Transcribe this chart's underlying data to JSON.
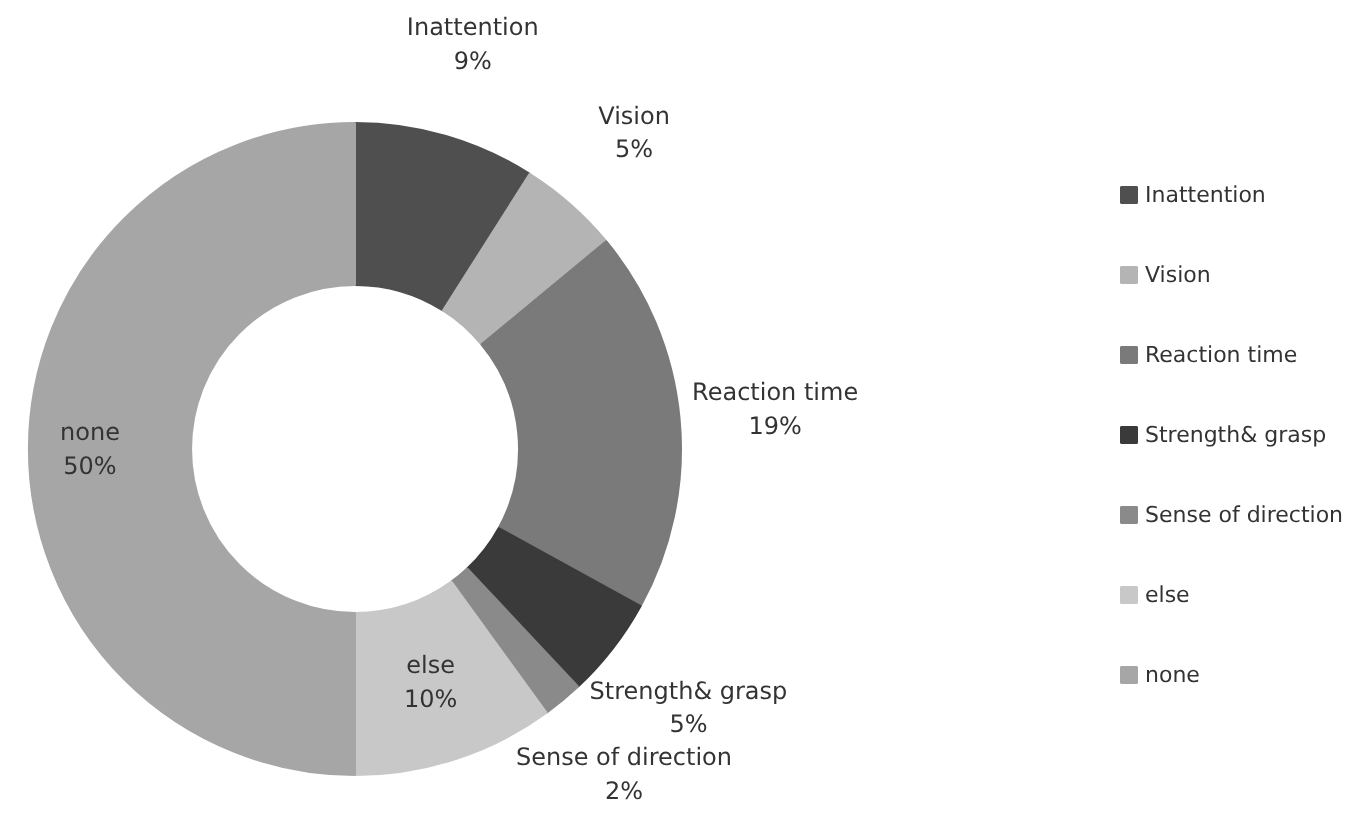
{
  "chart_data": {
    "type": "donut",
    "categories": [
      "Inattention",
      "Vision",
      "Reaction time",
      "Strength& grasp",
      "Sense of direction",
      "else",
      "none"
    ],
    "values": [
      9,
      5,
      19,
      5,
      2,
      10,
      50
    ],
    "colors": [
      "#4f4f4f",
      "#b4b4b4",
      "#7a7a7a",
      "#3a3a3a",
      "#8a8a8a",
      "#c8c8c8",
      "#a6a6a6"
    ],
    "value_labels": [
      "9%",
      "5%",
      "19%",
      "5%",
      "2%",
      "10%",
      "50%"
    ],
    "legend": "right"
  }
}
